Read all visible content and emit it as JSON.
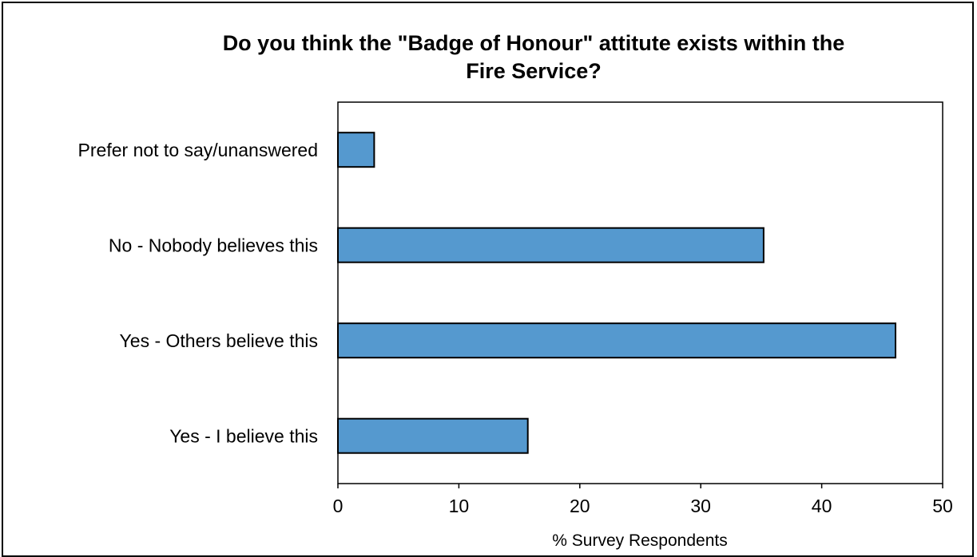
{
  "chart_data": {
    "type": "bar",
    "orientation": "horizontal",
    "title": "Do you think the \"Badge of Honour\" attitute exists within the Fire Service?",
    "title_lines": [
      "Do you think the \"Badge of Honour\" attitute exists within the",
      "Fire Service?"
    ],
    "categories": [
      "Prefer not to say/unanswered",
      "No - Nobody believes this",
      "Yes - Others believe this",
      "Yes - I believe this"
    ],
    "values": [
      3,
      35.2,
      46.1,
      15.7
    ],
    "xlabel": "% Survey Respondents",
    "ylabel": "",
    "xlim": [
      0,
      50
    ],
    "xticks": [
      "0",
      "10",
      "20",
      "30",
      "40",
      "50"
    ],
    "grid": false,
    "bar_color": "#5599cf",
    "bar_edge_color": "#000000"
  }
}
